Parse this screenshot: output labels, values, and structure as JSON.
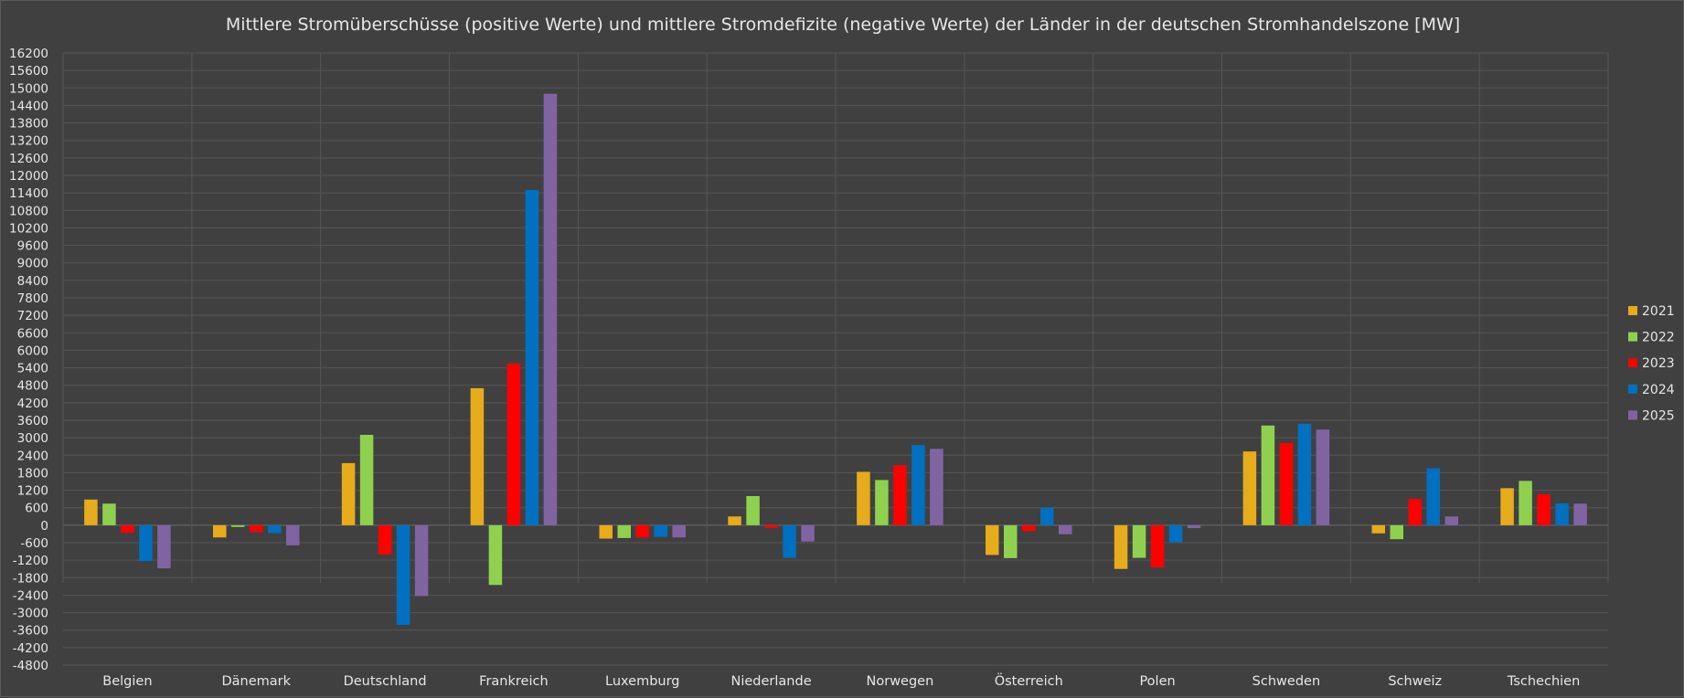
{
  "chart_data": {
    "type": "bar",
    "title": "Mittlere Stromüberschüsse (positive Werte) und mittlere Stromdefizite (negative Werte) der Länder in der deutschen Stromhandelszone [MW]",
    "xlabel": "",
    "ylabel": "",
    "ylim": [
      -4800,
      16200
    ],
    "y_tick_step": 600,
    "grid": true,
    "legend_position": "right",
    "categories": [
      "Belgien",
      "Dänemark",
      "Deutschland",
      "Frankreich",
      "Luxemburg",
      "Niederlande",
      "Norwegen",
      "Österreich",
      "Polen",
      "Schweden",
      "Schweiz",
      "Tschechien"
    ],
    "series": [
      {
        "name": "2021",
        "color": "#e6ac1c",
        "values": [
          880,
          -420,
          2130,
          4700,
          -460,
          300,
          1830,
          -1020,
          -1500,
          2530,
          -280,
          1270
        ]
      },
      {
        "name": "2022",
        "color": "#8fd14f",
        "values": [
          740,
          -60,
          3100,
          -2050,
          -440,
          1000,
          1550,
          -1130,
          -1120,
          3420,
          -480,
          1520
        ]
      },
      {
        "name": "2023",
        "color": "#ff0000",
        "values": [
          -260,
          -240,
          -1000,
          5550,
          -420,
          -100,
          2060,
          -200,
          -1450,
          2820,
          900,
          1060
        ]
      },
      {
        "name": "2024",
        "color": "#0070c0",
        "values": [
          -1230,
          -270,
          -3420,
          11500,
          -400,
          -1120,
          2750,
          600,
          -590,
          3480,
          1950,
          750
        ]
      },
      {
        "name": "2025",
        "color": "#8064a2",
        "values": [
          -1480,
          -690,
          -2430,
          14800,
          -420,
          -560,
          2620,
          -310,
          -100,
          3280,
          300,
          740
        ]
      }
    ]
  }
}
